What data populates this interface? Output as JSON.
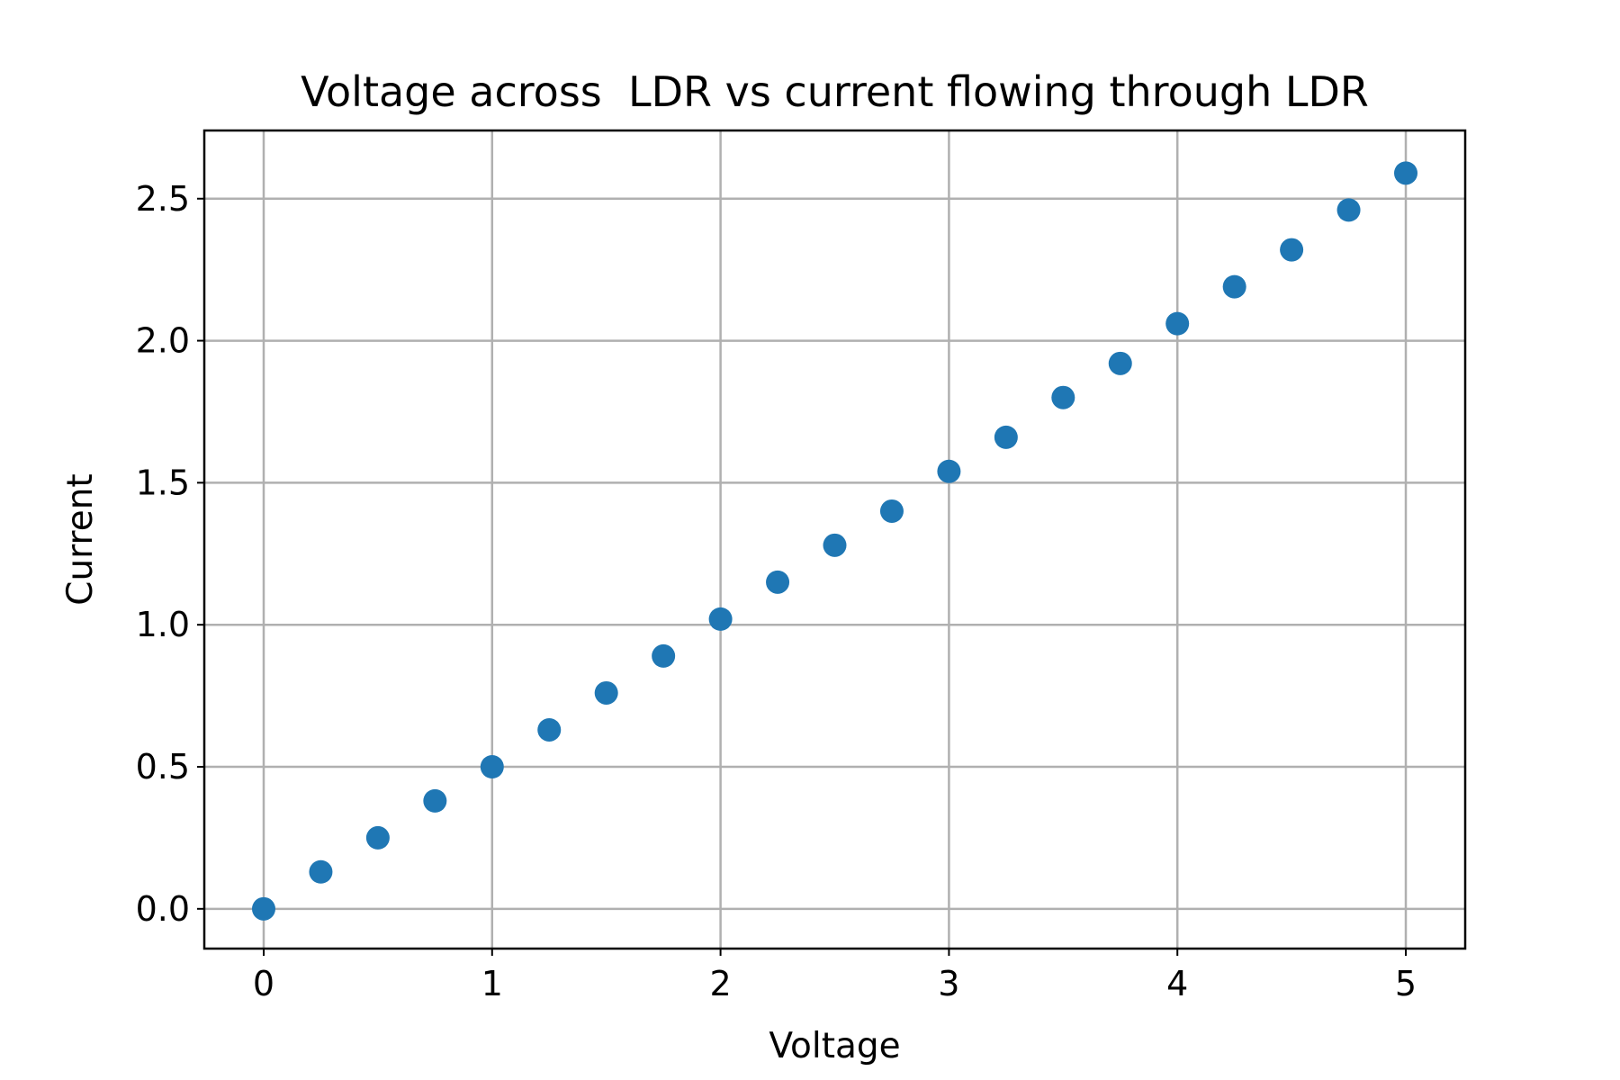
{
  "chart_data": {
    "type": "scatter",
    "title": "Voltage across  LDR vs current flowing through LDR",
    "xlabel": "Voltage",
    "ylabel": "Current",
    "xlim": [
      -0.26,
      5.26
    ],
    "ylim": [
      -0.14,
      2.74
    ],
    "x_ticks": [
      0,
      1,
      2,
      3,
      4,
      5
    ],
    "x_tick_labels": [
      "0",
      "1",
      "2",
      "3",
      "4",
      "5"
    ],
    "y_ticks": [
      0.0,
      0.5,
      1.0,
      1.5,
      2.0,
      2.5
    ],
    "y_tick_labels": [
      "0.0",
      "0.5",
      "1.0",
      "1.5",
      "2.0",
      "2.5"
    ],
    "grid": true,
    "series": [
      {
        "color": "#1f77b4",
        "x": [
          0,
          0.25,
          0.5,
          0.75,
          1.0,
          1.25,
          1.5,
          1.75,
          2.0,
          2.25,
          2.5,
          2.75,
          3.0,
          3.25,
          3.5,
          3.75,
          4.0,
          4.25,
          4.5,
          4.75,
          5.0
        ],
        "y": [
          0.0,
          0.13,
          0.25,
          0.38,
          0.5,
          0.63,
          0.76,
          0.89,
          1.02,
          1.15,
          1.28,
          1.4,
          1.54,
          1.66,
          1.8,
          1.92,
          2.06,
          2.19,
          2.32,
          2.46,
          2.59
        ]
      }
    ]
  }
}
